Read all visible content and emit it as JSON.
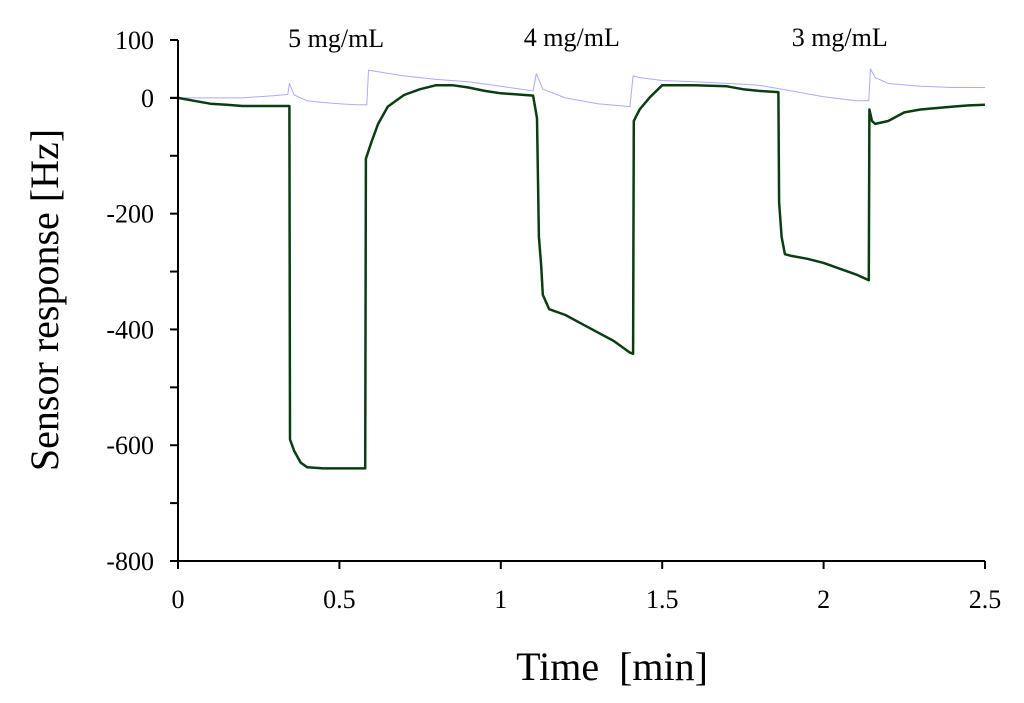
{
  "chart_data": {
    "type": "line",
    "title": "",
    "xlabel": "Time  [min]",
    "ylabel": "Sensor response [Hz]",
    "xlim": [
      0,
      2.5
    ],
    "ylim": [
      -800,
      100
    ],
    "x_ticks": [
      0,
      0.5,
      1,
      1.5,
      2,
      2.5
    ],
    "x_tick_labels": [
      "0",
      "0.5",
      "1",
      "1.5",
      "2",
      "2.5"
    ],
    "y_ticks": [
      100,
      0,
      -200,
      -400,
      -600,
      -800
    ],
    "y_tick_labels": [
      "100",
      "0",
      "-200",
      "-400",
      "-600",
      "-800"
    ],
    "y_minor_step": 100,
    "grid": false,
    "legend": "none",
    "annotations": [
      {
        "text": "5 mg/mL",
        "x": 0.49,
        "y": 88
      },
      {
        "text": "4 mg/mL",
        "x": 1.22,
        "y": 90
      },
      {
        "text": "3 mg/mL",
        "x": 2.05,
        "y": 90
      }
    ],
    "series": [
      {
        "color": "#0b3d12",
        "stroke_width": 2.5,
        "points": [
          [
            0,
            0
          ],
          [
            0.05,
            -5
          ],
          [
            0.1,
            -10
          ],
          [
            0.15,
            -12
          ],
          [
            0.2,
            -14
          ],
          [
            0.25,
            -14
          ],
          [
            0.3,
            -14
          ],
          [
            0.345,
            -14
          ],
          [
            0.347,
            -590
          ],
          [
            0.36,
            -610
          ],
          [
            0.38,
            -630
          ],
          [
            0.4,
            -638
          ],
          [
            0.45,
            -640
          ],
          [
            0.5,
            -640
          ],
          [
            0.58,
            -640
          ],
          [
            0.582,
            -105
          ],
          [
            0.6,
            -75
          ],
          [
            0.62,
            -45
          ],
          [
            0.65,
            -15
          ],
          [
            0.7,
            5
          ],
          [
            0.75,
            15
          ],
          [
            0.8,
            22
          ],
          [
            0.85,
            22
          ],
          [
            0.9,
            18
          ],
          [
            0.95,
            12
          ],
          [
            1.0,
            8
          ],
          [
            1.05,
            6
          ],
          [
            1.1,
            4
          ],
          [
            1.112,
            -35
          ],
          [
            1.118,
            -240
          ],
          [
            1.125,
            -290
          ],
          [
            1.13,
            -340
          ],
          [
            1.15,
            -365
          ],
          [
            1.2,
            -375
          ],
          [
            1.25,
            -390
          ],
          [
            1.3,
            -405
          ],
          [
            1.35,
            -420
          ],
          [
            1.38,
            -432
          ],
          [
            1.4,
            -440
          ],
          [
            1.41,
            -442
          ],
          [
            1.412,
            -40
          ],
          [
            1.43,
            -20
          ],
          [
            1.46,
            0
          ],
          [
            1.5,
            22
          ],
          [
            1.6,
            22
          ],
          [
            1.7,
            20
          ],
          [
            1.75,
            15
          ],
          [
            1.8,
            12
          ],
          [
            1.86,
            10
          ],
          [
            1.862,
            -180
          ],
          [
            1.87,
            -240
          ],
          [
            1.88,
            -270
          ],
          [
            1.9,
            -273
          ],
          [
            1.95,
            -278
          ],
          [
            2.0,
            -285
          ],
          [
            2.05,
            -295
          ],
          [
            2.1,
            -305
          ],
          [
            2.14,
            -315
          ],
          [
            2.142,
            -20
          ],
          [
            2.15,
            -40
          ],
          [
            2.16,
            -45
          ],
          [
            2.2,
            -40
          ],
          [
            2.25,
            -25
          ],
          [
            2.3,
            -20
          ],
          [
            2.4,
            -15
          ],
          [
            2.45,
            -13
          ],
          [
            2.5,
            -12
          ]
        ]
      },
      {
        "color": "#aaaaff",
        "stroke_width": 1,
        "points": [
          [
            0,
            0
          ],
          [
            0.1,
            0
          ],
          [
            0.2,
            0
          ],
          [
            0.25,
            2
          ],
          [
            0.3,
            4
          ],
          [
            0.34,
            6
          ],
          [
            0.345,
            25
          ],
          [
            0.36,
            5
          ],
          [
            0.4,
            -5
          ],
          [
            0.45,
            -8
          ],
          [
            0.5,
            -10
          ],
          [
            0.55,
            -12
          ],
          [
            0.585,
            -12
          ],
          [
            0.59,
            48
          ],
          [
            0.62,
            45
          ],
          [
            0.7,
            38
          ],
          [
            0.8,
            32
          ],
          [
            0.9,
            28
          ],
          [
            1.0,
            20
          ],
          [
            1.1,
            12
          ],
          [
            1.11,
            42
          ],
          [
            1.13,
            15
          ],
          [
            1.2,
            0
          ],
          [
            1.3,
            -10
          ],
          [
            1.4,
            -15
          ],
          [
            1.41,
            38
          ],
          [
            1.43,
            35
          ],
          [
            1.5,
            30
          ],
          [
            1.6,
            28
          ],
          [
            1.7,
            25
          ],
          [
            1.8,
            22
          ],
          [
            1.9,
            12
          ],
          [
            2.0,
            2
          ],
          [
            2.1,
            -5
          ],
          [
            2.14,
            -5
          ],
          [
            2.145,
            50
          ],
          [
            2.16,
            35
          ],
          [
            2.2,
            25
          ],
          [
            2.3,
            20
          ],
          [
            2.4,
            18
          ],
          [
            2.5,
            18
          ]
        ]
      }
    ]
  }
}
